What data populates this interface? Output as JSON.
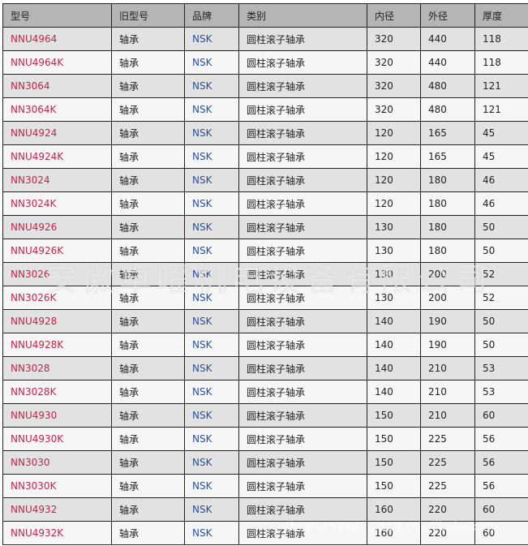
{
  "table": {
    "headers": [
      "型号",
      "旧型号",
      "品牌",
      "类别",
      "内径",
      "外径",
      "厚度"
    ],
    "rows": [
      [
        "NNU4964",
        "轴承",
        "NSK",
        "圆柱滚子轴承",
        "320",
        "440",
        "118"
      ],
      [
        "NNU4964K",
        "轴承",
        "NSK",
        "圆柱滚子轴承",
        "320",
        "440",
        "118"
      ],
      [
        "NN3064",
        "轴承",
        "NSK",
        "圆柱滚子轴承",
        "320",
        "480",
        "121"
      ],
      [
        "NN3064K",
        "轴承",
        "NSK",
        "圆柱滚子轴承",
        "320",
        "480",
        "121"
      ],
      [
        "NNU4924",
        "轴承",
        "NSK",
        "圆柱滚子轴承",
        "120",
        "165",
        "45"
      ],
      [
        "NNU4924K",
        "轴承",
        "NSK",
        "圆柱滚子轴承",
        "120",
        "165",
        "45"
      ],
      [
        "NN3024",
        "轴承",
        "NSK",
        "圆柱滚子轴承",
        "120",
        "180",
        "46"
      ],
      [
        "NN3024K",
        "轴承",
        "NSK",
        "圆柱滚子轴承",
        "120",
        "180",
        "46"
      ],
      [
        "NNU4926",
        "轴承",
        "NSK",
        "圆柱滚子轴承",
        "130",
        "180",
        "50"
      ],
      [
        "NNU4926K",
        "轴承",
        "NSK",
        "圆柱滚子轴承",
        "130",
        "180",
        "50"
      ],
      [
        "NN3026",
        "轴承",
        "NSK",
        "圆柱滚子轴承",
        "130",
        "200",
        "52"
      ],
      [
        "NN3026K",
        "轴承",
        "NSK",
        "圆柱滚子轴承",
        "130",
        "200",
        "52"
      ],
      [
        "NNU4928",
        "轴承",
        "NSK",
        "圆柱滚子轴承",
        "140",
        "190",
        "50"
      ],
      [
        "NNU4928K",
        "轴承",
        "NSK",
        "圆柱滚子轴承",
        "140",
        "190",
        "50"
      ],
      [
        "NN3028",
        "轴承",
        "NSK",
        "圆柱滚子轴承",
        "140",
        "210",
        "53"
      ],
      [
        "NN3028K",
        "轴承",
        "NSK",
        "圆柱滚子轴承",
        "140",
        "210",
        "53"
      ],
      [
        "NNU4930",
        "轴承",
        "NSK",
        "圆柱滚子轴承",
        "150",
        "210",
        "60"
      ],
      [
        "NNU4930K",
        "轴承",
        "NSK",
        "圆柱滚子轴承",
        "150",
        "225",
        "56"
      ],
      [
        "NN3030",
        "轴承",
        "NSK",
        "圆柱滚子轴承",
        "150",
        "225",
        "56"
      ],
      [
        "NN3030K",
        "轴承",
        "NSK",
        "圆柱滚子轴承",
        "150",
        "225",
        "56"
      ],
      [
        "NNU4932",
        "轴承",
        "NSK",
        "圆柱滚子轴承",
        "160",
        "220",
        "60"
      ],
      [
        "NNU4932K",
        "轴承",
        "NSK",
        "圆柱滚子轴承",
        "160",
        "220",
        "60"
      ]
    ]
  },
  "watermark": {
    "company": "安徽卓曜机电设备有限公司",
    "shop": "shop1352480...517.cn.alibaba.com"
  },
  "colors": {
    "model": "#c0264a",
    "brand": "#2a4f9a",
    "header_bg": "#b5b5b5"
  }
}
